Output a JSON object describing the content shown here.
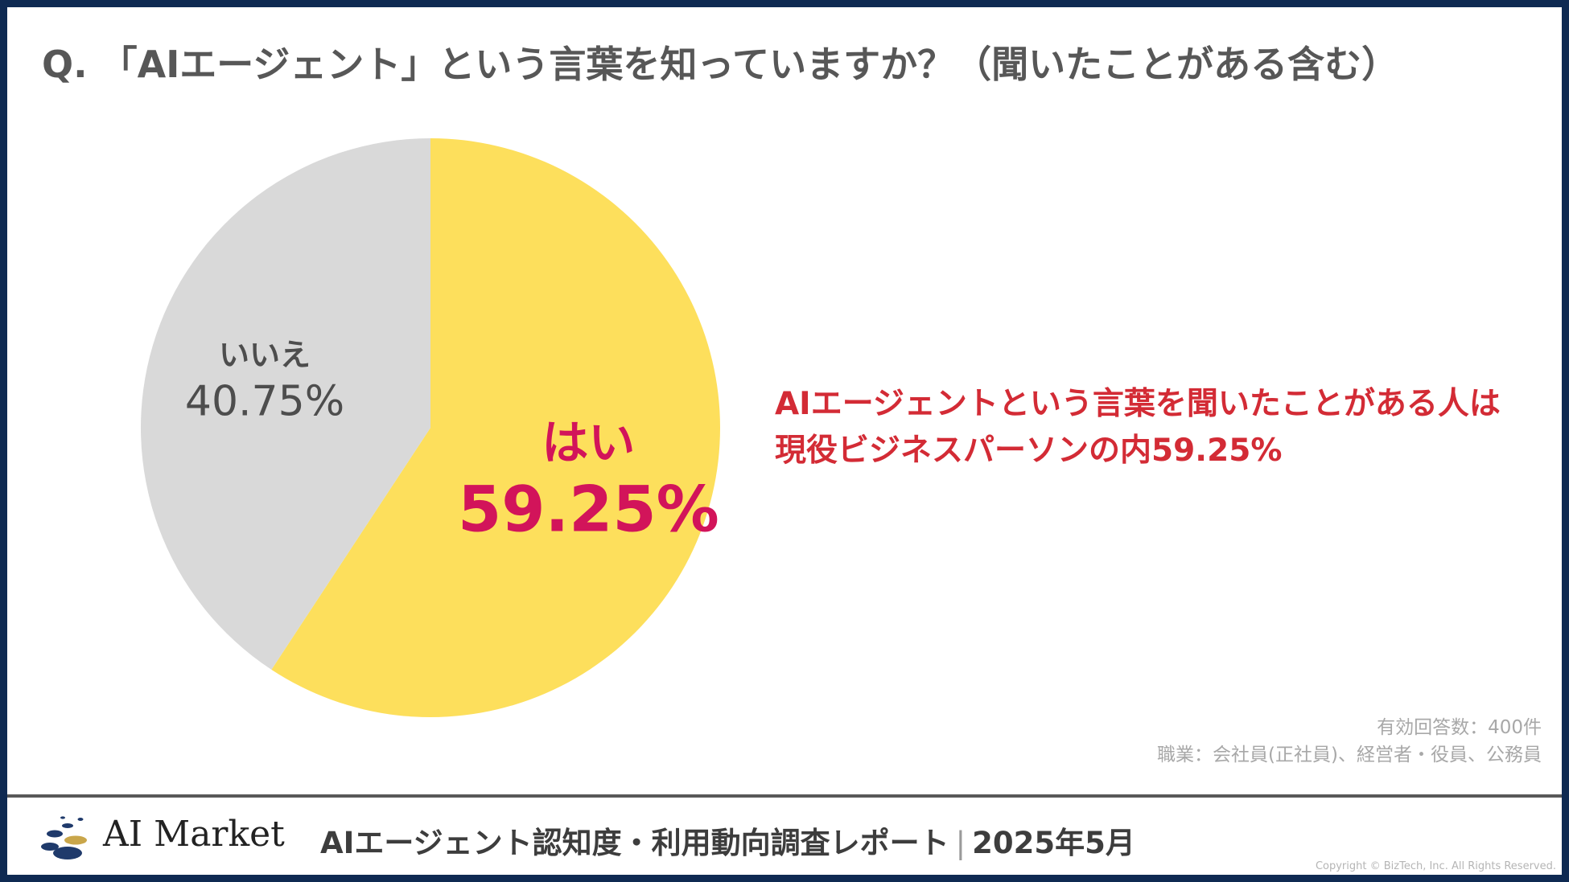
{
  "question": "Q. 「AIエージェント」という言葉を知っていますか？（聞いたことがある含む）",
  "chart_data": {
    "type": "pie",
    "categories": [
      "はい",
      "いいえ"
    ],
    "values": [
      59.25,
      40.75
    ],
    "labels": [
      "59.25%",
      "40.75%"
    ],
    "colors": [
      "#fddf5c",
      "#d9d9d9"
    ],
    "label_colors": [
      "#d2145a",
      "#4d4d4d"
    ]
  },
  "callout": {
    "line1": "AIエージェントという言葉を聞いたことがある人は",
    "line2": "現役ビジネスパーソンの内59.25%"
  },
  "meta": {
    "responses": "有効回答数：400件",
    "occupation": "職業：会社員(正社員)、経営者・役員、公務員"
  },
  "footer": {
    "logo_text": "AI Market",
    "report_title": "AIエージェント認知度・利用動向調査レポート",
    "separator": "|",
    "date": "2025年5月",
    "copyright": "Copyright © BizTech, Inc. All Rights Reserved."
  },
  "colors": {
    "frame": "#0f2a52",
    "logo_dark": "#1f3a6b",
    "logo_gold": "#c9a64a"
  }
}
